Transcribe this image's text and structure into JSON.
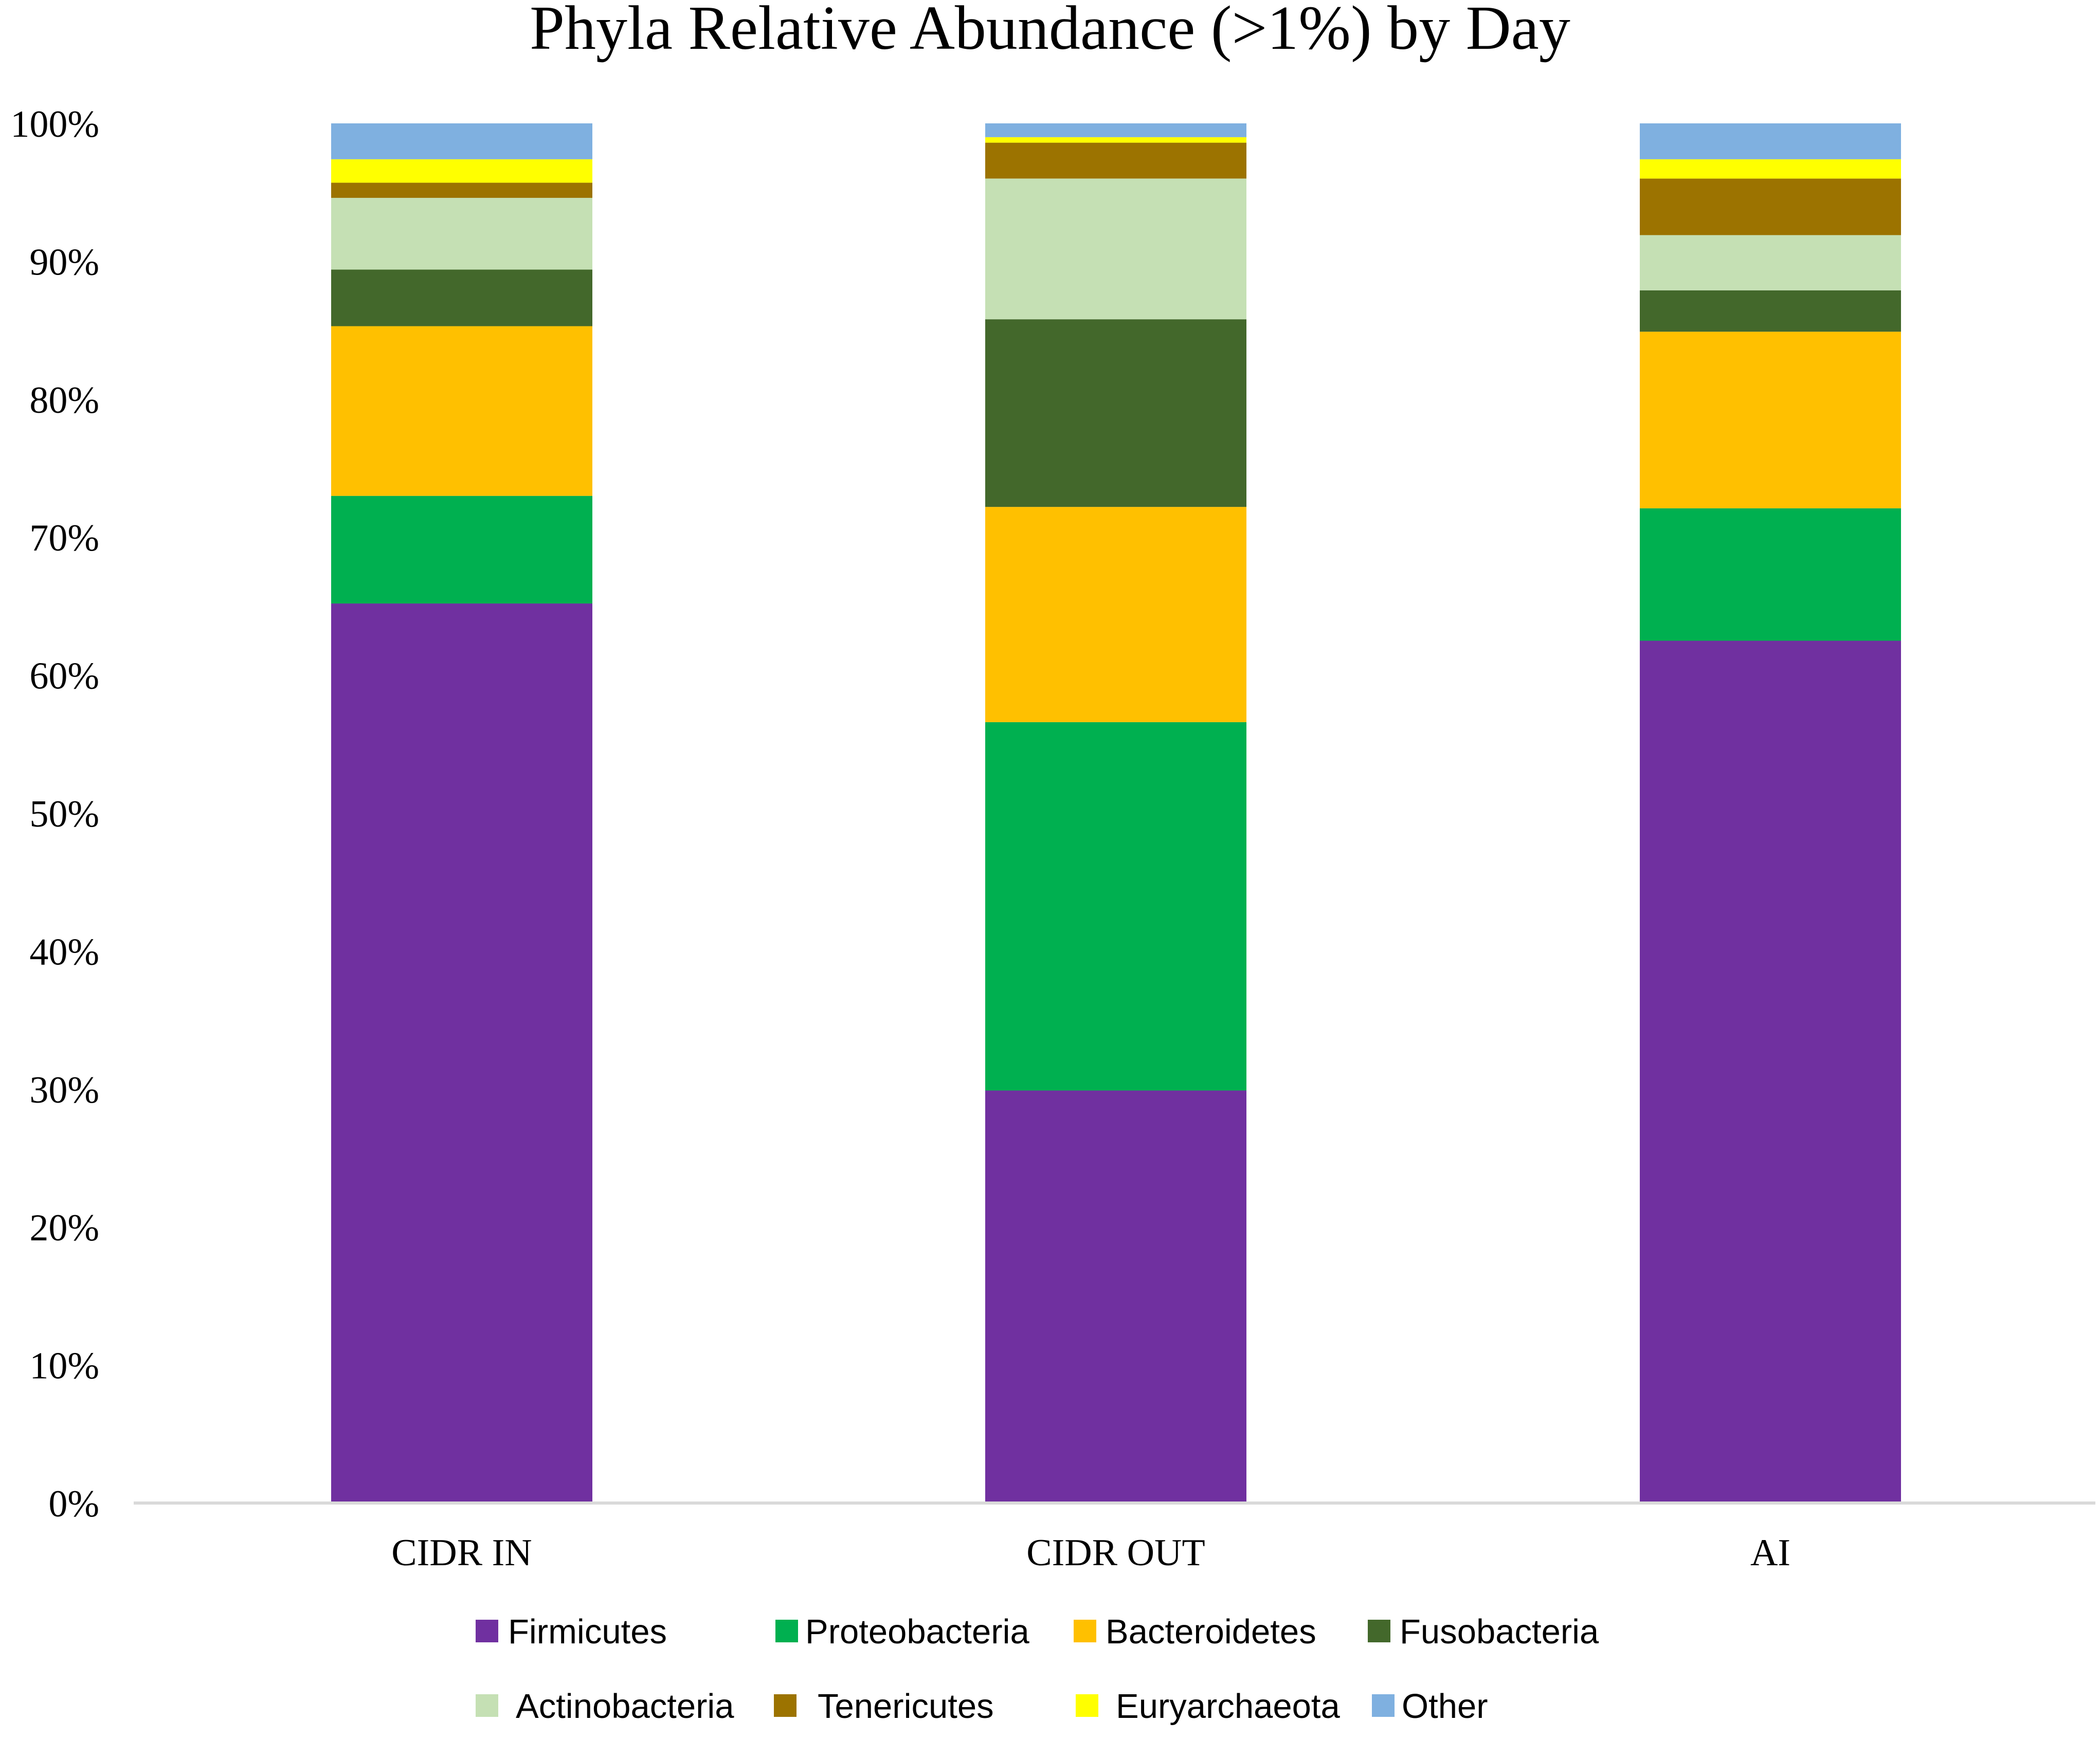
{
  "chart_data": {
    "type": "bar",
    "stacked": true,
    "percent_scale": true,
    "title": "Phyla Relative Abundance (>1%) by Day",
    "xlabel": "",
    "ylabel": "",
    "ylim": [
      0,
      100
    ],
    "yticks": [
      "0%",
      "10%",
      "20%",
      "30%",
      "40%",
      "50%",
      "60%",
      "70%",
      "80%",
      "90%",
      "100%"
    ],
    "categories": [
      "CIDR IN",
      "CIDR OUT",
      "AI"
    ],
    "series": [
      {
        "name": "Firmicutes",
        "color": "#7030A0",
        "values": [
          65.2,
          29.9,
          62.5
        ]
      },
      {
        "name": "Proteobacteria",
        "color": "#00B050",
        "values": [
          7.8,
          26.7,
          9.6
        ]
      },
      {
        "name": "Bacteroidetes",
        "color": "#FFC000",
        "values": [
          12.3,
          15.6,
          12.8
        ]
      },
      {
        "name": "Fusobacteria",
        "color": "#43682B",
        "values": [
          4.1,
          13.6,
          3.0
        ]
      },
      {
        "name": "Actinobacteria",
        "color": "#C5E0B4",
        "values": [
          5.2,
          10.2,
          4.0
        ]
      },
      {
        "name": "Tenericutes",
        "color": "#9C7300",
        "values": [
          1.1,
          2.6,
          4.1
        ]
      },
      {
        "name": "Euryarchaeota",
        "color": "#FFFF00",
        "values": [
          1.7,
          0.4,
          1.4
        ]
      },
      {
        "name": "Other",
        "color": "#7FB0E0",
        "values": [
          2.6,
          1.0,
          2.6
        ]
      }
    ],
    "legend_position": "bottom",
    "grid": false
  }
}
